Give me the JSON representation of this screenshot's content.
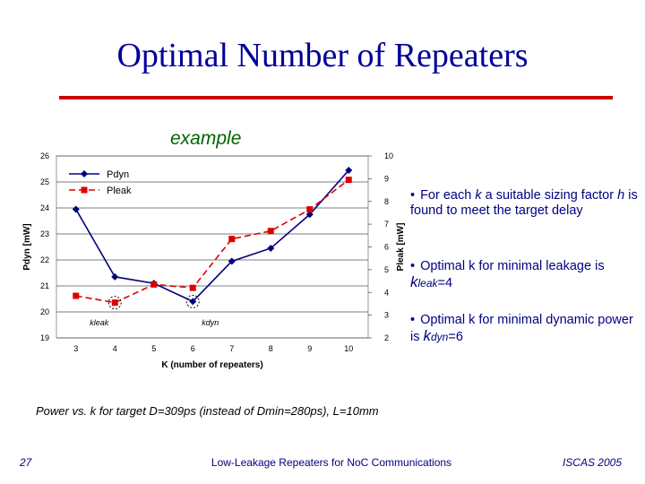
{
  "slide": {
    "title": "Optimal Number of Repeaters",
    "subtitle": "example",
    "caption": "Power vs. k for target D=309ps (instead of Dmin=280ps), L=10mm",
    "footer": {
      "page": "27",
      "center": "Low-Leakage Repeaters for NoC Communications",
      "right": "ISCAS 2005"
    },
    "bullets": [
      {
        "text_a": "For each ",
        "k": "k",
        "text_b": " a suitable sizing factor ",
        "h": "h",
        "text_c": " is found to meet the target delay"
      },
      {
        "text_a": "Optimal k for minimal leakage is ",
        "sym": "k",
        "sub": "leak",
        "text_b": "=4"
      },
      {
        "text_a": "Optimal k for minimal dynamic power is ",
        "sym": "k",
        "sub": "dyn",
        "text_b": "=6"
      }
    ]
  },
  "colors": {
    "title": "#000099",
    "rule": "#cc0000",
    "subtitle": "#006600",
    "text": "#000080",
    "pdyn": "#000080",
    "pleak": "#dd0000"
  },
  "chart_data": {
    "type": "line",
    "xlabel": "K (number of repeaters)",
    "ylabel_left": "Pdyn [mW]",
    "ylabel_right": "Pleak [mW]",
    "x": [
      3,
      4,
      5,
      6,
      7,
      8,
      9,
      10
    ],
    "y_left_ticks": [
      19,
      20,
      21,
      22,
      23,
      24,
      25,
      26
    ],
    "y_right_ticks": [
      2,
      3,
      4,
      5,
      6,
      7,
      8,
      9,
      10
    ],
    "ylim_left": [
      19,
      26
    ],
    "ylim_right": [
      2,
      10
    ],
    "grid": "horizontal",
    "legend_position": "top-left",
    "series": [
      {
        "name": "Pdyn",
        "axis": "left",
        "marker": "diamond",
        "line": "solid",
        "color": "#000080",
        "values": [
          23.95,
          21.35,
          21.1,
          20.4,
          21.95,
          22.45,
          23.75,
          25.45
        ]
      },
      {
        "name": "Pleak",
        "axis": "right",
        "marker": "square",
        "line": "dashed",
        "color": "#dd0000",
        "values": [
          3.85,
          3.55,
          4.35,
          4.2,
          6.35,
          6.7,
          7.65,
          8.95
        ]
      }
    ],
    "annotations": [
      {
        "label": "kleak",
        "x": 4
      },
      {
        "label": "kdyn",
        "x": 6
      }
    ]
  }
}
